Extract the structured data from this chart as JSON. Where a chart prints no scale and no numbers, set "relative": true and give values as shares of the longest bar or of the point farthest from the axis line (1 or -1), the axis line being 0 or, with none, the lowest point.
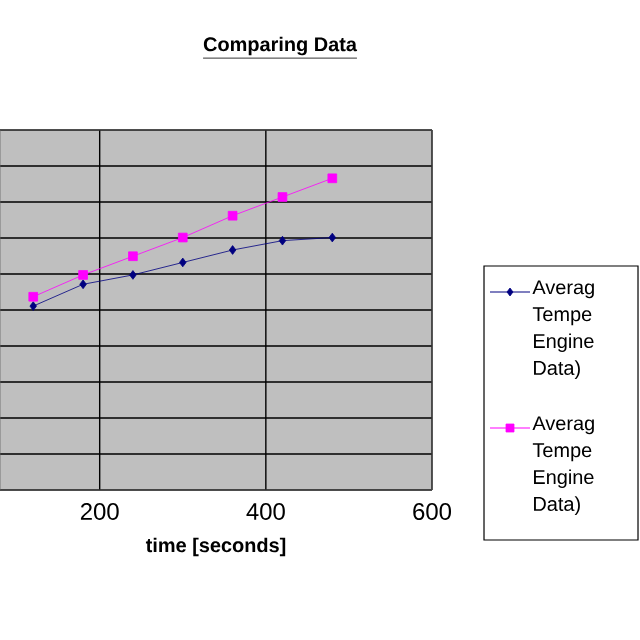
{
  "chart_data": {
    "type": "line",
    "title": "Comparing Data",
    "xlabel": "time [seconds]",
    "relative": true,
    "xlim": [
      80,
      600
    ],
    "xticks": [
      200,
      400,
      600
    ],
    "grid": true,
    "legend": "right",
    "tick_labels": "x",
    "series": [
      {
        "name": "Averag Tempe Engine Data)",
        "color": "#000080",
        "marker": "diamond",
        "x": [
          120,
          180,
          240,
          300,
          360,
          420,
          480
        ],
        "values": [
          0.59,
          0.66,
          0.69,
          0.73,
          0.77,
          0.8,
          0.81
        ]
      },
      {
        "name": "Averag Tempe Engine Data)",
        "color": "#ff00ff",
        "marker": "square",
        "x": [
          120,
          180,
          240,
          300,
          360,
          420,
          480
        ],
        "values": [
          0.62,
          0.69,
          0.75,
          0.81,
          0.88,
          0.94,
          1
        ]
      }
    ]
  }
}
